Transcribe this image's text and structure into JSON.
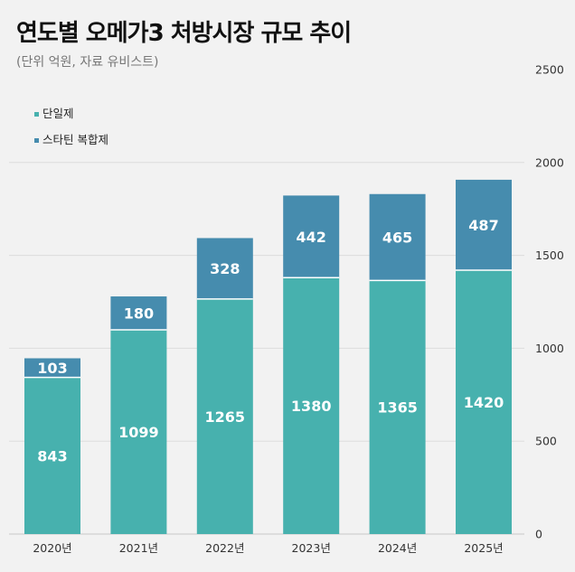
{
  "chart_data": {
    "type": "bar",
    "stacked": true,
    "title": "연도별 오메가3 처방시장 규모 추이",
    "subtitle": "(단위 억원, 자료 유비스트)",
    "categories": [
      "2020년",
      "2021년",
      "2022년",
      "2023년",
      "2024년",
      "2025년"
    ],
    "series": [
      {
        "name": "단일제",
        "color": "#47b1ae",
        "values": [
          843,
          1099,
          1265,
          1380,
          1365,
          1420
        ]
      },
      {
        "name": "스타틴 복합제",
        "color": "#468cae",
        "values": [
          103,
          180,
          328,
          442,
          465,
          487
        ]
      }
    ],
    "ylim": [
      0,
      2500
    ],
    "yticks": [
      0,
      500,
      1000,
      1500,
      2000,
      2500
    ],
    "y_axis_side": "right",
    "grid": true,
    "legend": "top-left",
    "data_labels": true,
    "xlabel": "",
    "ylabel": ""
  }
}
